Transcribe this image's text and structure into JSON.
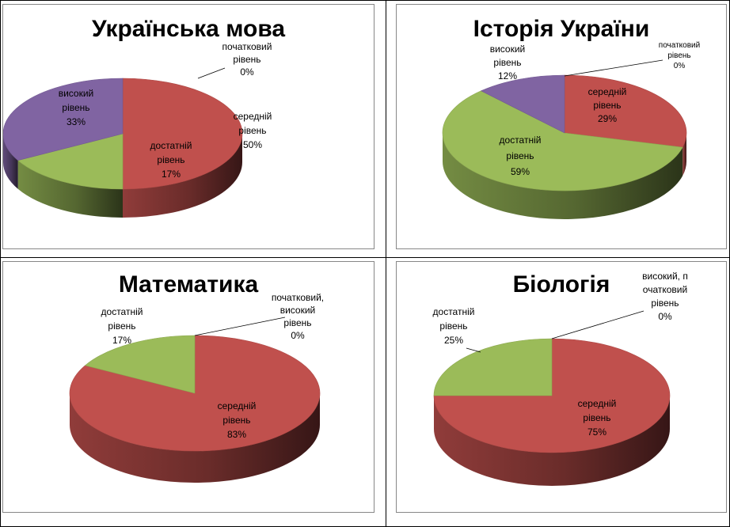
{
  "chart_data": [
    {
      "type": "pie",
      "title": "Українська мова",
      "slices": [
        {
          "label": [
            "початковий",
            "рівень",
            "0%"
          ],
          "value": 0,
          "color": "#7a7a7a"
        },
        {
          "label": [
            "середній",
            "рівень",
            "50%"
          ],
          "value": 50,
          "color": "#c0504d"
        },
        {
          "label": [
            "достатній",
            "рівень",
            "17%"
          ],
          "value": 17,
          "color": "#9bbb59"
        },
        {
          "label": [
            "високий",
            "рівень",
            "33%"
          ],
          "value": 33,
          "color": "#8064a2"
        }
      ]
    },
    {
      "type": "pie",
      "title": "Історія України",
      "slices": [
        {
          "label": [
            "початковий",
            "рівень",
            "0%"
          ],
          "value": 0,
          "color": "#7a7a7a"
        },
        {
          "label": [
            "середній",
            "рівень",
            "29%"
          ],
          "value": 29,
          "color": "#c0504d"
        },
        {
          "label": [
            "достатній",
            "рівень",
            "59%"
          ],
          "value": 59,
          "color": "#9bbb59"
        },
        {
          "label": [
            "високий",
            "рівень",
            "12%"
          ],
          "value": 12,
          "color": "#8064a2"
        }
      ]
    },
    {
      "type": "pie",
      "title": "Математика",
      "slices": [
        {
          "label": [
            "початковий,",
            "високий",
            "рівень",
            "0%"
          ],
          "value": 0,
          "color": "#7a7a7a"
        },
        {
          "label": [
            "середній",
            "рівень",
            "83%"
          ],
          "value": 83,
          "color": "#c0504d"
        },
        {
          "label": [
            "достатній",
            "рівень",
            "17%"
          ],
          "value": 17,
          "color": "#9bbb59"
        }
      ]
    },
    {
      "type": "pie",
      "title": "Біологія",
      "slices": [
        {
          "label": [
            "високий, п",
            "очатковий",
            "рівень",
            "0%"
          ],
          "value": 0,
          "color": "#7a7a7a"
        },
        {
          "label": [
            "середній",
            "рівень",
            "75%"
          ],
          "value": 75,
          "color": "#c0504d"
        },
        {
          "label": [
            "достатній",
            "рівень",
            "25%"
          ],
          "value": 25,
          "color": "#9bbb59"
        }
      ]
    }
  ]
}
